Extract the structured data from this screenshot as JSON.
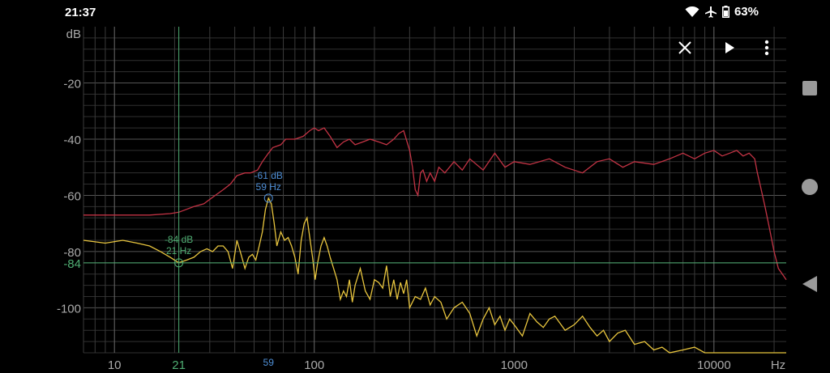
{
  "status": {
    "time": "21:37",
    "battery": "63%",
    "icons": [
      "wifi-icon",
      "airplane-icon",
      "battery-icon"
    ]
  },
  "toolbar": {
    "close_icon": "close-icon",
    "play_icon": "play-icon",
    "menu_icon": "more-vert-icon"
  },
  "navigation": {
    "items": [
      "recents-icon",
      "home-icon",
      "back-icon"
    ]
  },
  "chart_data": {
    "type": "line",
    "x_scale": "log",
    "xlim": [
      7,
      23000
    ],
    "ylim": [
      -116,
      0
    ],
    "xlabel": "Hz",
    "ylabel": "dB",
    "x_tick_labels": [
      "10",
      "100",
      "1000",
      "10000"
    ],
    "y_tick_labels": [
      "-20",
      "-40",
      "-60",
      "-80",
      "-100"
    ],
    "grid": true,
    "colors": {
      "peak_series": "#c23344",
      "current_series": "#e8c53e",
      "cursor": "#4fae73",
      "peak_marker": "#4f8fd6"
    },
    "series": [
      {
        "name": "",
        "color": "#c23344",
        "x": [
          7,
          10,
          15,
          19,
          21,
          25,
          28,
          32,
          35,
          38,
          41,
          45,
          48,
          52,
          55,
          59,
          62,
          68,
          72,
          80,
          88,
          95,
          100,
          105,
          112,
          120,
          130,
          140,
          150,
          160,
          175,
          190,
          210,
          230,
          250,
          265,
          280,
          300,
          310,
          320,
          330,
          340,
          350,
          365,
          380,
          400,
          420,
          450,
          500,
          550,
          600,
          700,
          800,
          900,
          1000,
          1200,
          1500,
          1800,
          2200,
          2600,
          3000,
          3500,
          4000,
          5000,
          6000,
          7000,
          8000,
          9000,
          10000,
          11000,
          12000,
          13000,
          14000,
          15000,
          16000,
          16500,
          17000,
          17500,
          18000,
          19000,
          20000,
          21000,
          22000,
          23000
        ],
        "y": [
          -67,
          -67,
          -67,
          -66.5,
          -66,
          -64,
          -63,
          -60,
          -58,
          -56,
          -53,
          -52,
          -52,
          -51,
          -48,
          -45,
          -43,
          -42,
          -40,
          -40,
          -39,
          -37,
          -36,
          -37,
          -36,
          -39,
          -43,
          -41,
          -40,
          -42,
          -41,
          -40,
          -41,
          -42,
          -40,
          -38,
          -37,
          -44,
          -50,
          -58,
          -60,
          -52,
          -51,
          -55,
          -52,
          -55,
          -50,
          -52,
          -48,
          -51,
          -47,
          -51,
          -45,
          -50,
          -48,
          -49,
          -47,
          -50,
          -52,
          -48,
          -47,
          -50,
          -48,
          -49,
          -47,
          -45,
          -47,
          -45,
          -44,
          -46,
          -45,
          -44,
          -46,
          -45,
          -47,
          -52,
          -56,
          -60,
          -64,
          -72,
          -80,
          -86,
          -88,
          -90
        ]
      },
      {
        "name": "",
        "color": "#e8c53e",
        "x": [
          7,
          9,
          11,
          13,
          15,
          17,
          19,
          21,
          23,
          25,
          27,
          29,
          31,
          33,
          35,
          37,
          39,
          41,
          43,
          45,
          47,
          49,
          51,
          53,
          55,
          57,
          59,
          61,
          63,
          65,
          68,
          71,
          74,
          77,
          80,
          83,
          86,
          89,
          92,
          95,
          98,
          101,
          104,
          108,
          112,
          116,
          120,
          125,
          130,
          135,
          140,
          145,
          150,
          155,
          160,
          170,
          180,
          190,
          200,
          210,
          220,
          230,
          240,
          250,
          260,
          270,
          280,
          290,
          300,
          320,
          340,
          360,
          380,
          400,
          430,
          460,
          500,
          550,
          600,
          650,
          700,
          750,
          800,
          850,
          900,
          950,
          1000,
          1100,
          1200,
          1300,
          1400,
          1500,
          1600,
          1800,
          2000,
          2200,
          2400,
          2600,
          2800,
          3000,
          3300,
          3600,
          4000,
          4500,
          5000,
          5500,
          6000,
          7000,
          8000,
          9000,
          10000,
          11000,
          12000,
          13000,
          14000,
          15000,
          16000,
          17000,
          18000,
          19000,
          20000,
          21000,
          22000,
          23000
        ],
        "y": [
          -76,
          -77,
          -76,
          -77,
          -78,
          -80,
          -82,
          -84,
          -83,
          -82,
          -80,
          -79,
          -80,
          -78,
          -78,
          -80,
          -86,
          -76,
          -81,
          -86,
          -82,
          -81,
          -83,
          -78,
          -73,
          -65,
          -61,
          -63,
          -70,
          -78,
          -73,
          -76,
          -75,
          -78,
          -82,
          -88,
          -76,
          -70,
          -68,
          -75,
          -82,
          -90,
          -84,
          -78,
          -75,
          -78,
          -82,
          -86,
          -90,
          -97,
          -94,
          -96,
          -90,
          -98,
          -92,
          -86,
          -94,
          -97,
          -90,
          -91,
          -93,
          -85,
          -96,
          -90,
          -97,
          -91,
          -95,
          -90,
          -100,
          -96,
          -97,
          -93,
          -99,
          -96,
          -98,
          -104,
          -100,
          -98,
          -102,
          -110,
          -104,
          -100,
          -106,
          -103,
          -108,
          -104,
          -106,
          -110,
          -102,
          -105,
          -107,
          -104,
          -103,
          -108,
          -106,
          -103,
          -107,
          -110,
          -108,
          -112,
          -109,
          -108,
          -113,
          -112,
          -115,
          -114,
          -116,
          -115,
          -114,
          -116,
          -116,
          -116,
          -116,
          -116,
          -116,
          -116,
          -116,
          -116,
          -116,
          -116,
          -116,
          -116,
          -116,
          -116
        ]
      }
    ],
    "cursor": {
      "freq_label": "21",
      "db_label": "-84",
      "annotation_db": "-84 dB",
      "annotation_hz": "21 Hz",
      "x": 21,
      "y": -84
    },
    "peak": {
      "freq_label": "59",
      "annotation_db": "-61 dB",
      "annotation_hz": "59 Hz",
      "x": 59,
      "y": -61
    }
  }
}
